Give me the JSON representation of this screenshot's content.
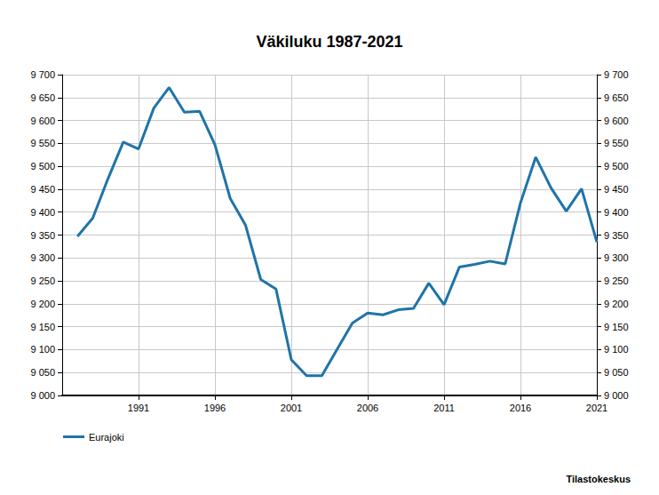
{
  "chart_data": {
    "type": "line",
    "title": "Väkiluku 1987-2021",
    "source": "Tilastokeskus",
    "x": [
      1987,
      1988,
      1989,
      1990,
      1991,
      1992,
      1993,
      1994,
      1995,
      1996,
      1997,
      1998,
      1999,
      2000,
      2001,
      2002,
      2003,
      2004,
      2005,
      2006,
      2007,
      2008,
      2009,
      2010,
      2011,
      2012,
      2013,
      2014,
      2015,
      2016,
      2017,
      2018,
      2019,
      2020,
      2021
    ],
    "series": [
      {
        "name": "Eurajoki",
        "color": "#1f74a8",
        "values": [
          9347,
          9387,
          9473,
          9553,
          9538,
          9627,
          9672,
          9618,
          9620,
          9547,
          9430,
          9372,
          9253,
          9232,
          9078,
          9043,
          9043,
          9101,
          9158,
          9180,
          9176,
          9187,
          9190,
          9245,
          9198,
          9280,
          9286,
          9293,
          9287,
          9420,
          9520,
          9453,
          9402,
          9451,
          9335
        ]
      }
    ],
    "xlim": [
      1986,
      2021
    ],
    "xticks": [
      1991,
      1996,
      2001,
      2006,
      2011,
      2016,
      2021
    ],
    "ylim": [
      9000,
      9700
    ],
    "yticks": [
      {
        "value": 9000,
        "label": "9 000"
      },
      {
        "value": 9050,
        "label": "9 050"
      },
      {
        "value": 9100,
        "label": "9 100"
      },
      {
        "value": 9150,
        "label": "9 150"
      },
      {
        "value": 9200,
        "label": "9 200"
      },
      {
        "value": 9250,
        "label": "9 250"
      },
      {
        "value": 9300,
        "label": "9 300"
      },
      {
        "value": 9350,
        "label": "9 350"
      },
      {
        "value": 9400,
        "label": "9 400"
      },
      {
        "value": 9450,
        "label": "9 450"
      },
      {
        "value": 9500,
        "label": "9 500"
      },
      {
        "value": 9550,
        "label": "9 550"
      },
      {
        "value": 9600,
        "label": "9 600"
      },
      {
        "value": 9650,
        "label": "9 650"
      },
      {
        "value": 9700,
        "label": "9 700"
      }
    ],
    "grid": true,
    "legend": "bottom-left"
  }
}
